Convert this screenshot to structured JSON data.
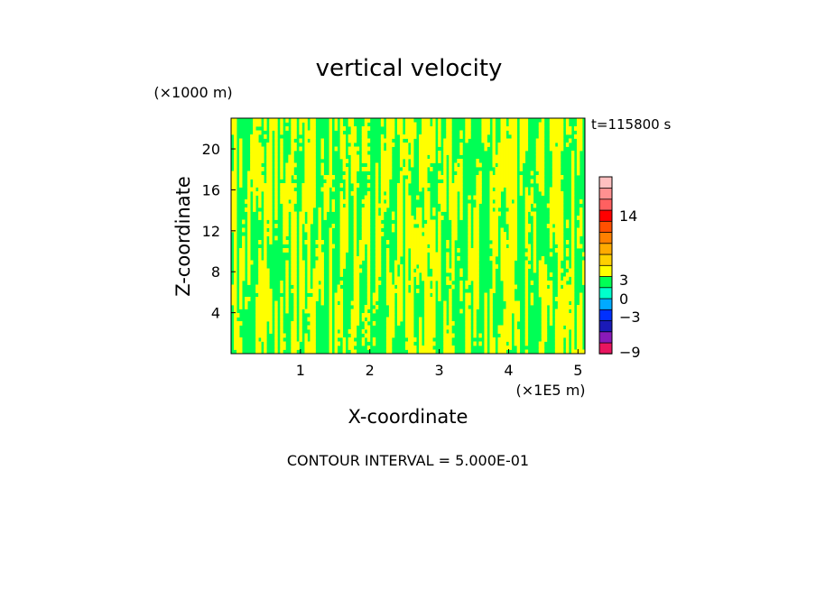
{
  "chart_data": {
    "type": "heatmap",
    "title": "vertical velocity",
    "time_label": "t=115800 s",
    "xlabel": "X-coordinate",
    "ylabel": "Z-coordinate",
    "x_unit": "(×1E5 m)",
    "y_unit": "(×1000 m)",
    "xlim": [
      0,
      5.1
    ],
    "ylim": [
      0,
      23
    ],
    "x_ticks": [
      1,
      2,
      3,
      4,
      5
    ],
    "y_ticks": [
      4,
      8,
      12,
      16,
      20
    ],
    "footer": "CONTOUR INTERVAL = 5.000E-01",
    "field_colors": {
      "positive": "#ffff00",
      "negative": "#00ff55"
    },
    "colorbar": {
      "labels": [
        "14",
        "3",
        "0",
        "−3",
        "−9"
      ],
      "colors": [
        "#e8155f",
        "#8a1ab8",
        "#1a1ab8",
        "#0030ff",
        "#00aaff",
        "#00ffcc",
        "#00ff55",
        "#ffff00",
        "#ffd000",
        "#ffaa00",
        "#ff8000",
        "#ff5000",
        "#ff0000",
        "#ff6060",
        "#ff9090",
        "#ffc0c0"
      ]
    }
  }
}
